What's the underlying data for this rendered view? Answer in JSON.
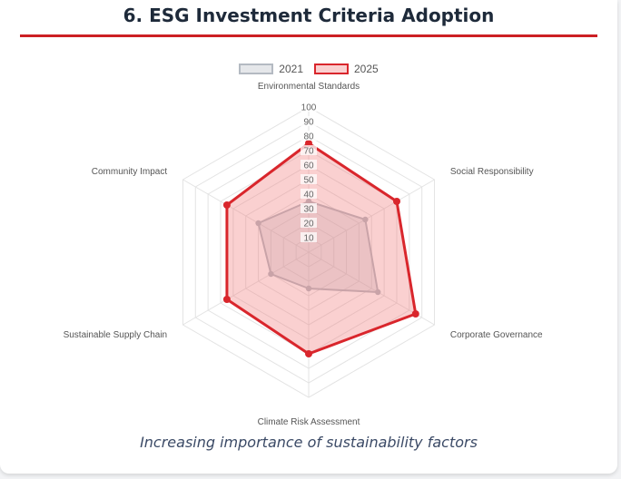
{
  "header": {
    "title": "6. ESG Investment Criteria Adoption"
  },
  "caption": "Increasing importance of sustainability factors",
  "chart_data": {
    "type": "radar",
    "categories": [
      "Environmental Standards",
      "Social Responsibility",
      "Corporate Governance",
      "Climate Risk Assessment",
      "Sustainable Supply Chain",
      "Community Impact"
    ],
    "series": [
      {
        "name": "2021",
        "values": [
          35,
          45,
          55,
          25,
          30,
          40
        ],
        "color": "#b4bac2",
        "fill": "rgba(180,186,194,0.30)"
      },
      {
        "name": "2025",
        "values": [
          75,
          70,
          85,
          70,
          65,
          65
        ],
        "color": "#d9262c",
        "fill": "rgba(240,120,120,0.35)"
      }
    ],
    "range": [
      0,
      100
    ],
    "ticks": [
      10,
      20,
      30,
      40,
      50,
      60,
      70,
      80,
      90,
      100
    ],
    "grid": true,
    "legend_position": "top"
  }
}
